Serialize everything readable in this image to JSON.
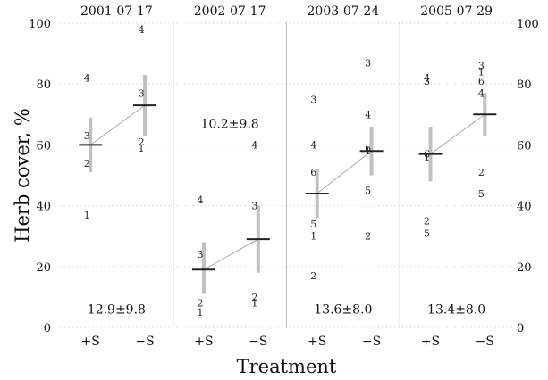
{
  "chart_data": {
    "type": "scatter",
    "ylabel": "Herb cover, %",
    "xlabel": "Treatment",
    "ylim": [
      0,
      100
    ],
    "yticks": [
      0,
      20,
      40,
      60,
      80,
      100
    ],
    "categories": [
      "+S",
      "−S"
    ],
    "grid": "horizontal dotted",
    "colors": {
      "interval": "#c0c0c0",
      "mean": "#222222",
      "connector": "#999999",
      "panel_divider": "#bbbbbb"
    },
    "panels": [
      {
        "title": "2001-07-17",
        "annotation": "12.9±9.8",
        "annotation_y": 6,
        "groups": [
          {
            "category": "+S",
            "mean": 60,
            "interval": [
              51,
              69
            ],
            "points": [
              {
                "label": "4",
                "y": 82
              },
              {
                "label": "3",
                "y": 63
              },
              {
                "label": "2",
                "y": 54
              },
              {
                "label": "1",
                "y": 37
              }
            ]
          },
          {
            "category": "−S",
            "mean": 73,
            "interval": [
              63,
              83
            ],
            "points": [
              {
                "label": "4",
                "y": 98
              },
              {
                "label": "3",
                "y": 77
              },
              {
                "label": "2",
                "y": 61
              },
              {
                "label": "1",
                "y": 59
              }
            ]
          }
        ]
      },
      {
        "title": "2002-07-17",
        "annotation": "10.2±9.8",
        "annotation_y": 67,
        "groups": [
          {
            "category": "+S",
            "mean": 19,
            "interval": [
              11,
              28
            ],
            "points": [
              {
                "label": "4",
                "y": 42
              },
              {
                "label": "3",
                "y": 24
              },
              {
                "label": "2",
                "y": 8
              },
              {
                "label": "1",
                "y": 5
              }
            ]
          },
          {
            "category": "−S",
            "mean": 29,
            "interval": [
              18,
              40
            ],
            "points": [
              {
                "label": "4",
                "y": 60
              },
              {
                "label": "3",
                "y": 40
              },
              {
                "label": "2",
                "y": 10
              },
              {
                "label": "1",
                "y": 8
              }
            ]
          }
        ]
      },
      {
        "title": "2003-07-24",
        "annotation": "13.6±8.0",
        "annotation_y": 6,
        "groups": [
          {
            "category": "+S",
            "mean": 44,
            "interval": [
              36,
              52
            ],
            "points": [
              {
                "label": "3",
                "y": 75
              },
              {
                "label": "4",
                "y": 60
              },
              {
                "label": "6",
                "y": 51
              },
              {
                "label": "5",
                "y": 34
              },
              {
                "label": "1",
                "y": 30
              },
              {
                "label": "2",
                "y": 17
              }
            ]
          },
          {
            "category": "−S",
            "mean": 58,
            "interval": [
              50,
              66
            ],
            "points": [
              {
                "label": "3",
                "y": 87
              },
              {
                "label": "4",
                "y": 70
              },
              {
                "label": "6",
                "y": 59
              },
              {
                "label": "1",
                "y": 58
              },
              {
                "label": "5",
                "y": 45
              },
              {
                "label": "2",
                "y": 30
              }
            ]
          }
        ]
      },
      {
        "title": "2005-07-29",
        "annotation": "13.4±8.0",
        "annotation_y": 6,
        "groups": [
          {
            "category": "+S",
            "mean": 57,
            "interval": [
              48,
              66
            ],
            "points": [
              {
                "label": "4",
                "y": 82
              },
              {
                "label": "3",
                "y": 81
              },
              {
                "label": "6",
                "y": 57
              },
              {
                "label": "1",
                "y": 56
              },
              {
                "label": "2",
                "y": 35
              },
              {
                "label": "5",
                "y": 31
              }
            ]
          },
          {
            "category": "−S",
            "mean": 70,
            "interval": [
              63,
              77
            ],
            "points": [
              {
                "label": "3",
                "y": 86
              },
              {
                "label": "1",
                "y": 84
              },
              {
                "label": "6",
                "y": 81
              },
              {
                "label": "4",
                "y": 77
              },
              {
                "label": "2",
                "y": 51
              },
              {
                "label": "5",
                "y": 44
              }
            ]
          }
        ]
      }
    ]
  }
}
